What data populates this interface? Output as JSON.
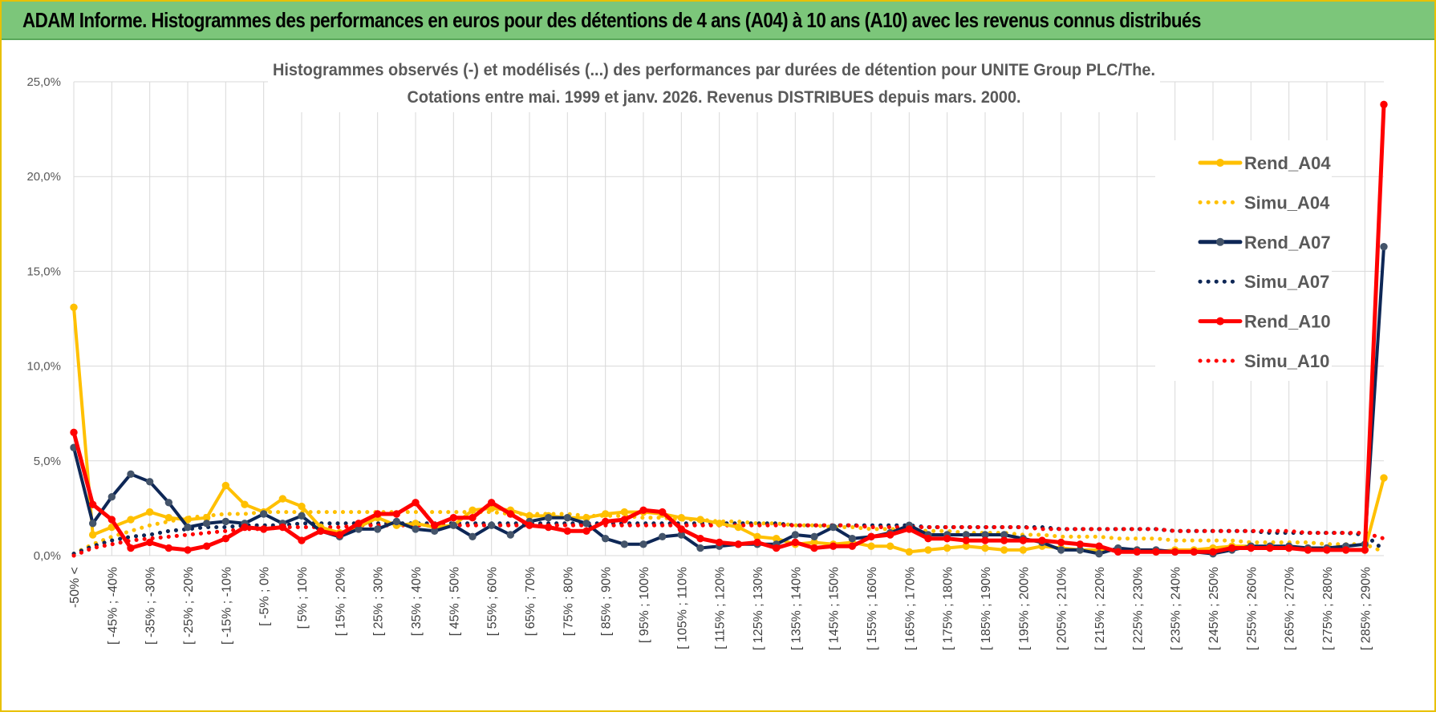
{
  "banner": {
    "title": "ADAM Informe. Histogrammes des performances en euros pour des détentions de 4 ans (A04) à 10 ans (A10) avec les revenus connus distribués"
  },
  "chart_data": {
    "type": "line",
    "title_line1": "Histogrammes observés (-) et modélisés (...) des performances par durées de détention pour UNITE Group PLC/The.",
    "title_line2": "Cotations entre mai. 1999 et janv. 2026.  Revenus DISTRIBUES depuis mars. 2000.",
    "ylim": [
      0,
      25
    ],
    "y_ticks": [
      0,
      5,
      10,
      15,
      20,
      25
    ],
    "y_tick_labels": [
      "0,0%",
      "5,0%",
      "10,0%",
      "15,0%",
      "20,0%",
      "25,0%"
    ],
    "grid": true,
    "legend_position": "right",
    "x_tick_labels": [
      "-50% <",
      "[ -45% ; -40%",
      "[ -35% ; -30%",
      "[ -25% ; -20%",
      "[ -15% ; -10%",
      "[ -5% ; 0%",
      "[ 5% ; 10%",
      "[ 15% ; 20%",
      "[ 25% ; 30%",
      "[ 35% ; 40%",
      "[ 45% ; 50%",
      "[ 55% ; 60%",
      "[ 65% ; 70%",
      "[ 75% ; 80%",
      "[ 85% ; 90%",
      "[ 95% ; 100%",
      "[ 105% ; 110%",
      "[ 115% ; 120%",
      "[ 125% ; 130%",
      "[ 135% ; 140%",
      "[ 145% ; 150%",
      "[ 155% ; 160%",
      "[ 165% ; 170%",
      "[ 175% ; 180%",
      "[ 185% ; 190%",
      "[ 195% ; 200%",
      "[ 205% ; 210%",
      "[ 215% ; 220%",
      "[ 225% ; 230%",
      "[ 235% ; 240%",
      "[ 245% ; 250%",
      "[ 255% ; 260%",
      "[ 265% ; 270%",
      "[ 275% ; 280%",
      "[ 285% ; 290%"
    ],
    "n_points": 70,
    "series": [
      {
        "name": "Rend_A04",
        "color": "#ffc000",
        "style": "solid",
        "values": [
          13.1,
          1.1,
          1.5,
          1.9,
          2.3,
          2.0,
          1.9,
          2.0,
          3.7,
          2.7,
          2.3,
          3.0,
          2.6,
          1.5,
          1.2,
          1.5,
          2.0,
          1.6,
          1.7,
          1.5,
          1.6,
          2.4,
          2.5,
          2.4,
          2.1,
          2.1,
          2.0,
          2.0,
          2.2,
          2.3,
          2.3,
          2.2,
          2.0,
          1.9,
          1.7,
          1.5,
          1.0,
          0.9,
          0.6,
          0.7,
          0.6,
          0.7,
          0.5,
          0.5,
          0.2,
          0.3,
          0.4,
          0.5,
          0.4,
          0.3,
          0.3,
          0.5,
          0.4,
          0.3,
          0.3,
          0.3,
          0.3,
          0.2,
          0.3,
          0.3,
          0.4,
          0.5,
          0.5,
          0.4,
          0.4,
          0.3,
          0.3,
          0.3,
          0.3,
          4.1
        ]
      },
      {
        "name": "Simu_A04",
        "color": "#ffc000",
        "style": "dotted",
        "values": [
          0.1,
          0.6,
          1.0,
          1.3,
          1.6,
          1.8,
          2.0,
          2.1,
          2.2,
          2.2,
          2.3,
          2.3,
          2.3,
          2.3,
          2.3,
          2.3,
          2.3,
          2.3,
          2.3,
          2.3,
          2.3,
          2.3,
          2.3,
          2.2,
          2.2,
          2.2,
          2.2,
          2.1,
          2.1,
          2.1,
          2.0,
          2.0,
          1.9,
          1.9,
          1.8,
          1.8,
          1.7,
          1.7,
          1.6,
          1.6,
          1.5,
          1.5,
          1.4,
          1.4,
          1.4,
          1.3,
          1.3,
          1.2,
          1.2,
          1.2,
          1.1,
          1.1,
          1.0,
          1.0,
          1.0,
          0.9,
          0.9,
          0.9,
          0.8,
          0.8,
          0.8,
          0.8,
          0.7,
          0.7,
          0.7,
          0.7,
          0.6,
          0.6,
          0.6,
          0.2
        ]
      },
      {
        "name": "Rend_A07",
        "color": "#0e2756",
        "style": "solid",
        "values": [
          5.7,
          1.7,
          3.1,
          4.3,
          3.9,
          2.8,
          1.5,
          1.7,
          1.8,
          1.7,
          2.2,
          1.7,
          2.1,
          1.3,
          1.0,
          1.4,
          1.4,
          1.8,
          1.4,
          1.3,
          1.6,
          1.0,
          1.6,
          1.1,
          1.8,
          2.0,
          2.0,
          1.7,
          0.9,
          0.6,
          0.6,
          1.0,
          1.1,
          0.4,
          0.5,
          0.6,
          0.6,
          0.6,
          1.1,
          1.0,
          1.5,
          0.9,
          1.0,
          1.2,
          1.6,
          1.1,
          1.1,
          1.1,
          1.1,
          1.1,
          0.9,
          0.7,
          0.3,
          0.3,
          0.1,
          0.4,
          0.3,
          0.3,
          0.2,
          0.2,
          0.1,
          0.3,
          0.5,
          0.5,
          0.5,
          0.4,
          0.4,
          0.5,
          0.6,
          16.3
        ]
      },
      {
        "name": "Simu_A07",
        "color": "#0e2756",
        "style": "dotted",
        "values": [
          0.1,
          0.5,
          0.8,
          1.0,
          1.1,
          1.3,
          1.4,
          1.5,
          1.5,
          1.6,
          1.6,
          1.6,
          1.7,
          1.7,
          1.7,
          1.7,
          1.7,
          1.7,
          1.7,
          1.7,
          1.7,
          1.7,
          1.7,
          1.7,
          1.7,
          1.7,
          1.7,
          1.7,
          1.7,
          1.7,
          1.7,
          1.7,
          1.7,
          1.7,
          1.7,
          1.7,
          1.7,
          1.7,
          1.6,
          1.6,
          1.6,
          1.6,
          1.6,
          1.6,
          1.6,
          1.5,
          1.5,
          1.5,
          1.5,
          1.5,
          1.5,
          1.5,
          1.4,
          1.4,
          1.4,
          1.4,
          1.4,
          1.4,
          1.3,
          1.3,
          1.3,
          1.3,
          1.3,
          1.2,
          1.2,
          1.2,
          1.2,
          1.2,
          1.1,
          0.3
        ]
      },
      {
        "name": "Rend_A10",
        "color": "#ff0000",
        "style": "solid",
        "values": [
          6.5,
          2.7,
          1.9,
          0.4,
          0.7,
          0.4,
          0.3,
          0.5,
          0.9,
          1.5,
          1.4,
          1.5,
          0.8,
          1.3,
          1.1,
          1.7,
          2.2,
          2.2,
          2.8,
          1.6,
          2.0,
          2.0,
          2.8,
          2.2,
          1.6,
          1.5,
          1.3,
          1.3,
          1.8,
          1.9,
          2.4,
          2.3,
          1.4,
          0.9,
          0.7,
          0.6,
          0.7,
          0.4,
          0.7,
          0.4,
          0.5,
          0.5,
          1.0,
          1.1,
          1.4,
          0.9,
          0.9,
          0.8,
          0.8,
          0.8,
          0.8,
          0.8,
          0.7,
          0.6,
          0.5,
          0.2,
          0.2,
          0.2,
          0.2,
          0.2,
          0.2,
          0.4,
          0.4,
          0.4,
          0.4,
          0.3,
          0.3,
          0.3,
          0.3,
          23.8
        ]
      },
      {
        "name": "Simu_A10",
        "color": "#ff0000",
        "style": "dotted",
        "values": [
          0.0,
          0.4,
          0.6,
          0.8,
          0.9,
          1.0,
          1.1,
          1.2,
          1.3,
          1.4,
          1.4,
          1.5,
          1.5,
          1.5,
          1.5,
          1.6,
          1.6,
          1.6,
          1.6,
          1.6,
          1.6,
          1.6,
          1.6,
          1.6,
          1.6,
          1.6,
          1.6,
          1.6,
          1.6,
          1.6,
          1.6,
          1.6,
          1.6,
          1.6,
          1.6,
          1.6,
          1.6,
          1.6,
          1.6,
          1.6,
          1.6,
          1.6,
          1.5,
          1.5,
          1.5,
          1.5,
          1.5,
          1.5,
          1.5,
          1.5,
          1.5,
          1.4,
          1.4,
          1.4,
          1.4,
          1.4,
          1.4,
          1.4,
          1.3,
          1.3,
          1.3,
          1.3,
          1.3,
          1.3,
          1.3,
          1.2,
          1.2,
          1.2,
          1.2,
          0.9
        ]
      }
    ]
  }
}
